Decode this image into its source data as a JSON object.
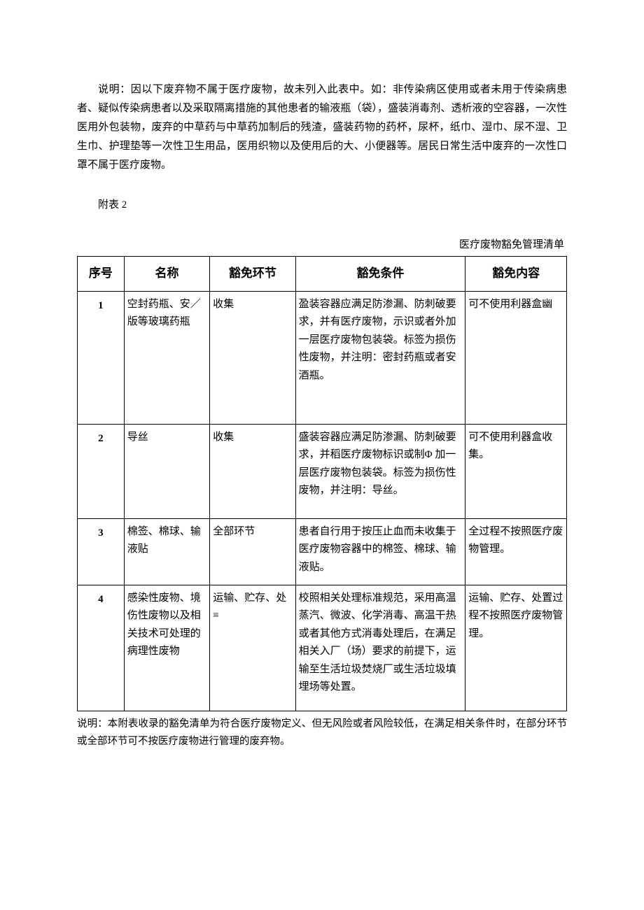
{
  "intro": "说明：因以下废弃物不属于医疗废物，故未列入此表中。如：非传染病区使用或者未用于传染病患者、疑似传染病患者以及采取隔离措施的其他患者的输液瓶（袋），盛装消毒剂、透析液的空容器，一次性医用外包装物，废弃的中草药与中草药加制后的残渣，盛装药物的药杯，尿杯，纸巾、湿巾、尿不湿、卫生巾、护理垫等一次性卫生用品，医用织物以及使用后的大、小便器等。居民日常生活中废弃的一次性口罩不属于医疗废物。",
  "appendix_label": "附表 2",
  "table_title": "医疗废物豁免管理清单",
  "headers": {
    "seq": "序号",
    "name": "名称",
    "stage": "豁免环节",
    "cond": "豁免条件",
    "content": "豁免内容"
  },
  "rows": [
    {
      "seq": "1",
      "name": "空封药瓶、安／版等玻璃药瓶",
      "stage": "收集",
      "cond": "盈装容器应满足防渗漏、防刺破要求，并有医疗废物，示识或者外加一层医疗废物包装袋。标签为损伤性废物，并注明：密封药瓶或者安酒瓶。",
      "content": "可不使用利器盒幽"
    },
    {
      "seq": "2",
      "name": "导丝",
      "stage": "收集",
      "cond": "盛装容器应满足防渗漏、防刺破要求，并稻医疗废物标识或制Φ 加一层医疗废物包装袋。标签为损伤性废物，并注明：导丝。",
      "content": "可不使用利器盒收集。"
    },
    {
      "seq": "3",
      "name": "棉签、棉球、输液贴",
      "stage": "全部环节",
      "cond": "患者自行用于按压止血而未收集于医疗废物容器中的棉签、棉球、输液贴。",
      "content": "全过程不按照医疗废物管理。"
    },
    {
      "seq": "4",
      "name": "感染性废物、境伤性废物以及相关技术可处理的病理性废物",
      "stage": "运输、贮存、处≡",
      "cond": "校照相关处理标准规范，采用高温蒸汽、微波、化学消毒、高温干热或者其他方式消毒处理后，在满足相关入厂（场）要求的前提下，运输至生活垃圾焚烧厂或生活垃圾填埋场等处置。",
      "content": "运输、贮存、处置过程不按照医疗废物管理。"
    }
  ],
  "footer_note": "说明：本附表收录的豁免清单为符合医疗废物定义、但无风险或者风险较低，在满足相关条件时，在部分环节或全部环节可不按医疗废物进行管理的废弃物。"
}
